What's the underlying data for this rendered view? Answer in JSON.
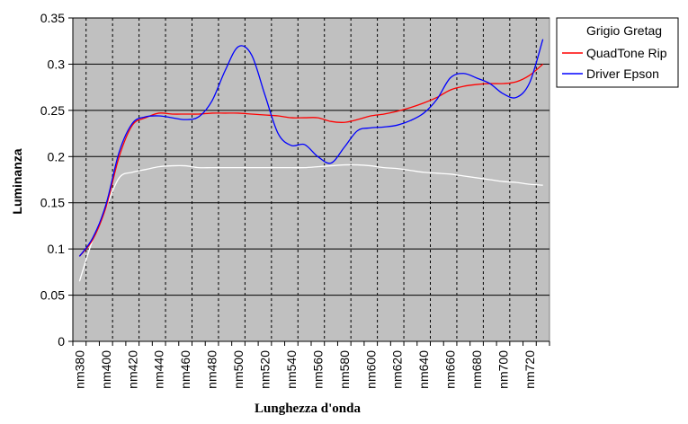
{
  "chart_data": {
    "type": "line",
    "title": "",
    "xlabel": "Lunghezza d'onda",
    "ylabel": "Luminanza",
    "ylim": [
      0,
      0.35
    ],
    "yticks": [
      "0",
      "0.05",
      "0.1",
      "0.15",
      "0.2",
      "0.25",
      "0.3",
      "0.35"
    ],
    "yticks_values": [
      0,
      0.05,
      0.1,
      0.15,
      0.2,
      0.25,
      0.3,
      0.35
    ],
    "x": [
      380,
      390,
      400,
      410,
      420,
      430,
      440,
      450,
      460,
      470,
      480,
      490,
      500,
      510,
      520,
      530,
      540,
      550,
      560,
      570,
      580,
      590,
      600,
      610,
      620,
      630,
      640,
      650,
      660,
      670,
      680,
      690,
      700,
      710,
      720,
      730
    ],
    "xticks_labels": [
      "nm380",
      "nm400",
      "nm420",
      "nm440",
      "nm460",
      "nm480",
      "nm500",
      "nm520",
      "nm540",
      "nm560",
      "nm580",
      "nm600",
      "nm620",
      "nm640",
      "nm660",
      "nm680",
      "nm700",
      "nm720"
    ],
    "xticks_values": [
      380,
      400,
      420,
      440,
      460,
      480,
      500,
      520,
      540,
      560,
      580,
      600,
      620,
      640,
      660,
      680,
      700,
      720
    ],
    "grid": true,
    "legend_position": "top-right",
    "plot_background": "#c0c0c0",
    "series": [
      {
        "name": "Grigio Gretag",
        "color": "#ffffff",
        "values": [
          0.065,
          0.11,
          0.145,
          0.177,
          0.183,
          0.186,
          0.189,
          0.19,
          0.19,
          0.188,
          0.188,
          0.188,
          0.188,
          0.188,
          0.188,
          0.188,
          0.188,
          0.188,
          0.189,
          0.19,
          0.191,
          0.191,
          0.19,
          0.188,
          0.187,
          0.185,
          0.183,
          0.182,
          0.181,
          0.179,
          0.177,
          0.175,
          0.173,
          0.172,
          0.17,
          0.169
        ]
      },
      {
        "name": "QuadTone Rip",
        "color": "#ff0000",
        "values": [
          0.092,
          0.11,
          0.145,
          0.2,
          0.234,
          0.242,
          0.247,
          0.246,
          0.246,
          0.246,
          0.247,
          0.247,
          0.247,
          0.246,
          0.245,
          0.244,
          0.242,
          0.242,
          0.242,
          0.238,
          0.237,
          0.24,
          0.244,
          0.246,
          0.249,
          0.253,
          0.258,
          0.264,
          0.272,
          0.276,
          0.278,
          0.279,
          0.279,
          0.281,
          0.288,
          0.3
        ]
      },
      {
        "name": "Driver Epson",
        "color": "#0000ff",
        "values": [
          0.092,
          0.112,
          0.148,
          0.205,
          0.236,
          0.243,
          0.244,
          0.242,
          0.24,
          0.243,
          0.26,
          0.293,
          0.319,
          0.31,
          0.267,
          0.225,
          0.212,
          0.213,
          0.2,
          0.193,
          0.21,
          0.228,
          0.231,
          0.232,
          0.234,
          0.239,
          0.247,
          0.262,
          0.285,
          0.29,
          0.285,
          0.279,
          0.268,
          0.264,
          0.28,
          0.327
        ]
      }
    ]
  }
}
